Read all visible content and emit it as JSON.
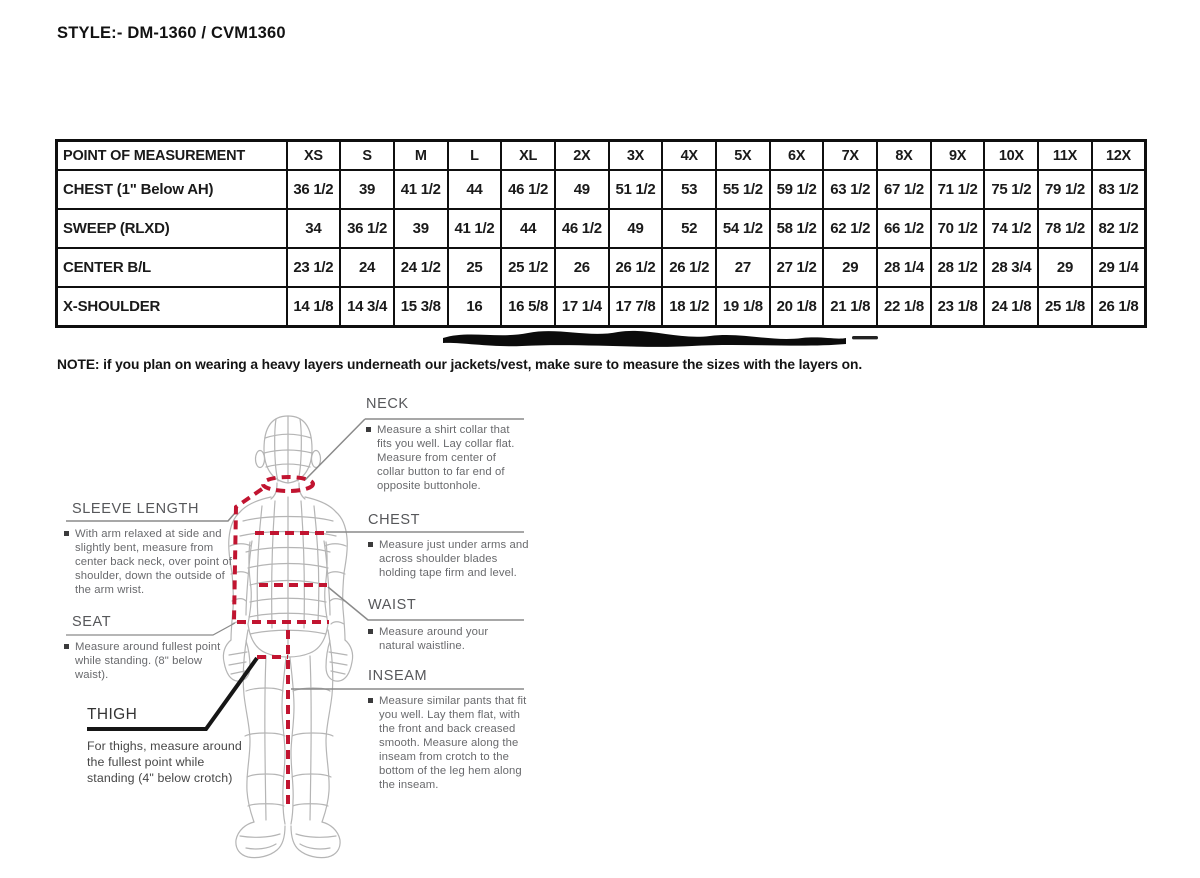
{
  "document": {
    "style_title": "STYLE:- DM-1360 / CVM1360",
    "note": "NOTE: if you plan on wearing a heavy layers underneath our jackets/vest, make sure to measure the sizes with the layers on."
  },
  "size_table": {
    "columns": [
      "POINT OF MEASUREMENT",
      "XS",
      "S",
      "M",
      "L",
      "XL",
      "2X",
      "3X",
      "4X",
      "5X",
      "6X",
      "7X",
      "8X",
      "9X",
      "10X",
      "11X",
      "12X"
    ],
    "rows": [
      {
        "label": "CHEST (1\" Below AH)",
        "values": [
          "36 1/2",
          "39",
          "41 1/2",
          "44",
          "46 1/2",
          "49",
          "51 1/2",
          "53",
          "55 1/2",
          "59 1/2",
          "63 1/2",
          "67 1/2",
          "71 1/2",
          "75 1/2",
          "79 1/2",
          "83 1/2"
        ]
      },
      {
        "label": "SWEEP (RLXD)",
        "values": [
          "34",
          "36 1/2",
          "39",
          "41 1/2",
          "44",
          "46 1/2",
          "49",
          "52",
          "54 1/2",
          "58 1/2",
          "62 1/2",
          "66 1/2",
          "70 1/2",
          "74 1/2",
          "78 1/2",
          "82 1/2"
        ]
      },
      {
        "label": "CENTER B/L",
        "values": [
          "23 1/2",
          "24",
          "24 1/2",
          "25",
          "25 1/2",
          "26",
          "26 1/2",
          "26 1/2",
          "27",
          "27 1/2",
          "29",
          "28 1/4",
          "28 1/2",
          "28 3/4",
          "29",
          "29 1/4"
        ]
      },
      {
        "label": "X-SHOULDER",
        "values": [
          "14 1/8",
          "14 3/4",
          "15 3/8",
          "16",
          "16 5/8",
          "17 1/4",
          "17 7/8",
          "18 1/2",
          "19 1/8",
          "20 1/8",
          "21 1/8",
          "22 1/8",
          "23 1/8",
          "24 1/8",
          "25 1/8",
          "26 1/8"
        ]
      }
    ]
  },
  "measurement_guide": {
    "sections": {
      "neck": {
        "title": "NECK",
        "text": "Measure a shirt collar that fits you well. Lay collar flat. Measure from center of collar button to far end of opposite buttonhole."
      },
      "sleeve": {
        "title": "SLEEVE LENGTH",
        "text": "With arm relaxed at side and slightly bent, measure from center back neck, over point of shoulder, down the outside of the arm wrist."
      },
      "chest": {
        "title": "CHEST",
        "text": "Measure just under arms and across shoulder blades holding tape firm and level."
      },
      "waist": {
        "title": "WAIST",
        "text": "Measure around your natural waistline."
      },
      "seat": {
        "title": "SEAT",
        "text": "Measure around fullest point while standing. (8\" below waist)."
      },
      "inseam": {
        "title": "INSEAM",
        "text": "Measure similar pants that fit you well. Lay them flat, with the front and back creased smooth. Measure along the inseam from crotch to the bottom of the leg hem along the inseam."
      },
      "thigh": {
        "title": "THIGH",
        "text": "For thighs, measure around the fullest point while standing (4\" below crotch)"
      }
    }
  },
  "colors": {
    "measure_line_red": "#c11430",
    "wireframe_gray": "#b5b5b5",
    "leader_gray": "#8a8a8a",
    "label_gray": "#56575a",
    "body_text_gray": "#696a6d",
    "table_border": "#0f0f0f"
  }
}
